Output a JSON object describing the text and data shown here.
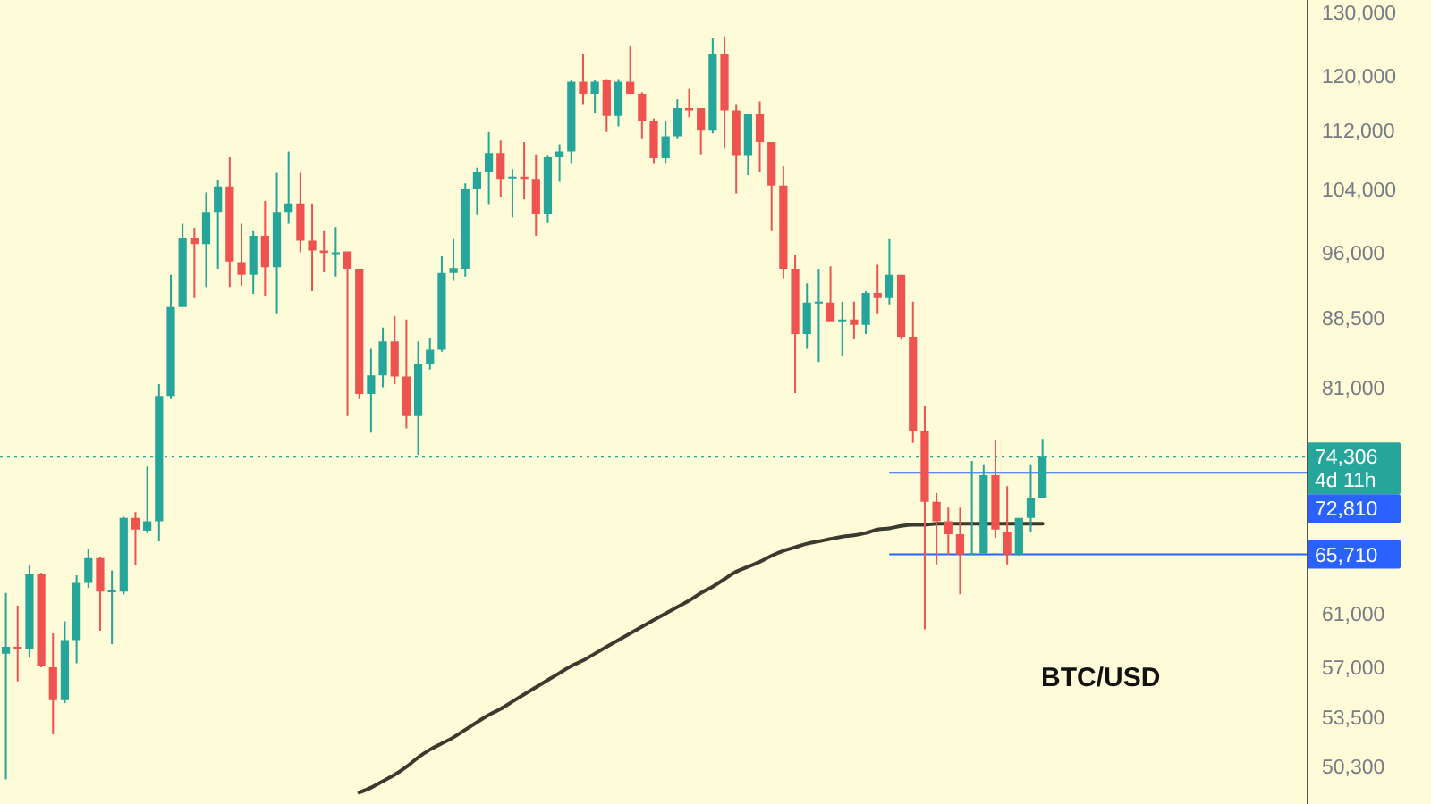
{
  "chart_data": {
    "type": "candlestick",
    "title": "BTC/USD",
    "categories": [
      null,
      null,
      null,
      null,
      null,
      null,
      null,
      null,
      null,
      null,
      null,
      null,
      null,
      null,
      null,
      null,
      null,
      null,
      null,
      null,
      null,
      null,
      null,
      null,
      null,
      null,
      null,
      null,
      null,
      null,
      null,
      null,
      null,
      null,
      null,
      null,
      null,
      null,
      null,
      null,
      null,
      null,
      null,
      null,
      null,
      null,
      null,
      null,
      null,
      null,
      null,
      null,
      null,
      null,
      null,
      null,
      null,
      null,
      null,
      null,
      null,
      null,
      null,
      null,
      null,
      null,
      null,
      null,
      null,
      null,
      null,
      null,
      null,
      null,
      null,
      null,
      null,
      null,
      null,
      null,
      null,
      null,
      null,
      null,
      null,
      null,
      null,
      null,
      null,
      null,
      null,
      null,
      null,
      null,
      null,
      null,
      null,
      null,
      null,
      null,
      null,
      null,
      null,
      null,
      null,
      null,
      null,
      null,
      null,
      null,
      null
    ],
    "ohlc": [
      [
        58000,
        62600,
        49500,
        58500
      ],
      [
        58500,
        61600,
        56000,
        58300
      ],
      [
        58300,
        64800,
        57700,
        64100
      ],
      [
        64100,
        64200,
        57000,
        57100
      ],
      [
        57000,
        59500,
        52400,
        54700
      ],
      [
        54700,
        60400,
        54500,
        59000
      ],
      [
        59000,
        64000,
        57300,
        63400
      ],
      [
        63400,
        66200,
        63000,
        65400
      ],
      [
        65400,
        65500,
        59700,
        62700
      ],
      [
        62700,
        64400,
        58700,
        62800
      ],
      [
        62700,
        68900,
        62500,
        68800
      ],
      [
        68800,
        69300,
        64800,
        67800
      ],
      [
        67700,
        73400,
        67500,
        68500
      ],
      [
        68500,
        81400,
        66800,
        80200
      ],
      [
        80200,
        93400,
        79900,
        89700
      ],
      [
        89700,
        99600,
        89700,
        97900
      ],
      [
        97900,
        99100,
        90700,
        97100
      ],
      [
        97100,
        103600,
        92000,
        101100
      ],
      [
        101100,
        105300,
        94100,
        104400
      ],
      [
        104400,
        108300,
        92000,
        95000
      ],
      [
        94900,
        99600,
        92100,
        93400
      ],
      [
        93400,
        98700,
        91200,
        98100
      ],
      [
        98100,
        102500,
        91000,
        94300
      ],
      [
        94300,
        106200,
        89000,
        101100
      ],
      [
        101100,
        109100,
        99600,
        102200
      ],
      [
        102200,
        106200,
        96100,
        97500
      ],
      [
        97500,
        102200,
        91500,
        96300
      ],
      [
        96300,
        98700,
        93700,
        96000
      ],
      [
        95900,
        99200,
        93200,
        96100
      ],
      [
        96200,
        96200,
        78200,
        94100
      ],
      [
        94100,
        94100,
        79900,
        80400
      ],
      [
        80400,
        85100,
        76600,
        82300
      ],
      [
        82300,
        87400,
        81100,
        85900
      ],
      [
        85900,
        88700,
        81400,
        82200
      ],
      [
        82200,
        88300,
        77000,
        78200
      ],
      [
        78200,
        85900,
        74500,
        83500
      ],
      [
        83500,
        86300,
        82900,
        85000
      ],
      [
        85000,
        95600,
        84800,
        93600
      ],
      [
        93600,
        97800,
        92800,
        94200
      ],
      [
        94100,
        104800,
        93200,
        104000
      ],
      [
        104000,
        106900,
        100700,
        106300
      ],
      [
        106300,
        111800,
        102100,
        108900
      ],
      [
        108900,
        110600,
        103000,
        105400
      ],
      [
        105500,
        106700,
        100400,
        105700
      ],
      [
        105700,
        110400,
        102700,
        105400
      ],
      [
        105400,
        108700,
        98100,
        100800
      ],
      [
        100800,
        108500,
        99700,
        108300
      ],
      [
        108300,
        110100,
        105000,
        109100
      ],
      [
        109100,
        119300,
        107400,
        119100
      ],
      [
        119100,
        123300,
        115800,
        117300
      ],
      [
        117300,
        119300,
        114500,
        119100
      ],
      [
        119300,
        119500,
        111800,
        114100
      ],
      [
        114100,
        119500,
        112600,
        119100
      ],
      [
        119100,
        124500,
        117300,
        117300
      ],
      [
        117300,
        117500,
        110800,
        113400
      ],
      [
        113400,
        113700,
        107400,
        108200
      ],
      [
        108200,
        113300,
        107400,
        111200
      ],
      [
        111200,
        116500,
        110800,
        115200
      ],
      [
        115200,
        118000,
        113900,
        114900
      ],
      [
        115200,
        115200,
        108700,
        112000
      ],
      [
        112000,
        125800,
        111600,
        123300
      ],
      [
        123300,
        126100,
        109500,
        114900
      ],
      [
        114900,
        115800,
        103500,
        108500
      ],
      [
        108500,
        114300,
        105900,
        114300
      ],
      [
        114300,
        116200,
        106300,
        110400
      ],
      [
        110400,
        110400,
        98700,
        104500
      ],
      [
        104500,
        107100,
        93000,
        94100
      ],
      [
        94100,
        95800,
        80500,
        86700
      ],
      [
        86700,
        92400,
        85100,
        90200
      ],
      [
        90100,
        94100,
        83700,
        90300
      ],
      [
        90200,
        94400,
        88100,
        88100
      ],
      [
        88100,
        90300,
        84300,
        88300
      ],
      [
        88300,
        90300,
        86200,
        87700
      ],
      [
        87700,
        91500,
        86700,
        91300
      ],
      [
        91300,
        94600,
        89000,
        90700
      ],
      [
        90700,
        97800,
        90000,
        93400
      ],
      [
        93400,
        93400,
        86100,
        86400
      ],
      [
        86400,
        90300,
        75600,
        76700
      ],
      [
        76700,
        79200,
        59800,
        70200
      ],
      [
        70200,
        71000,
        64900,
        68500
      ],
      [
        68500,
        69700,
        65700,
        67400
      ],
      [
        67400,
        69700,
        62500,
        65700
      ],
      [
        65700,
        73900,
        65700,
        65800
      ],
      [
        65800,
        73600,
        65700,
        72600
      ],
      [
        72600,
        75900,
        67100,
        67800
      ],
      [
        67600,
        71600,
        64900,
        65700
      ],
      [
        65700,
        68800,
        65600,
        68800
      ],
      [
        68800,
        73600,
        67600,
        70500
      ],
      [
        70500,
        76000,
        70500,
        74306
      ],
      null,
      null,
      null,
      null,
      null,
      null,
      null,
      null,
      null,
      null,
      null,
      null,
      null,
      null,
      null,
      null,
      null,
      null,
      null,
      null,
      null,
      null
    ],
    "colors": [
      "#26a69a",
      "#ef5350",
      "#26a69a",
      "#ef5350",
      "#ef5350",
      "#26a69a",
      "#26a69a",
      "#26a69a",
      "#ef5350",
      "#26a69a",
      "#26a69a",
      "#ef5350",
      "#26a69a",
      "#26a69a",
      "#26a69a",
      "#26a69a",
      "#ef5350",
      "#26a69a",
      "#26a69a",
      "#ef5350",
      "#ef5350",
      "#26a69a",
      "#ef5350",
      "#26a69a",
      "#26a69a",
      "#ef5350",
      "#ef5350",
      "#ef5350",
      "#26a69a",
      "#ef5350",
      "#ef5350",
      "#26a69a",
      "#26a69a",
      "#ef5350",
      "#ef5350",
      "#26a69a",
      "#26a69a",
      "#26a69a",
      "#26a69a",
      "#26a69a",
      "#26a69a",
      "#26a69a",
      "#ef5350",
      "#26a69a",
      "#ef5350",
      "#ef5350",
      "#26a69a",
      "#26a69a",
      "#26a69a",
      "#ef5350",
      "#26a69a",
      "#ef5350",
      "#26a69a",
      "#ef5350",
      "#ef5350",
      "#ef5350",
      "#26a69a",
      "#26a69a",
      "#ef5350",
      "#ef5350",
      "#26a69a",
      "#ef5350",
      "#ef5350",
      "#26a69a",
      "#ef5350",
      "#ef5350",
      "#ef5350",
      "#ef5350",
      "#26a69a",
      "#26a69a",
      "#ef5350",
      "#26a69a",
      "#ef5350",
      "#26a69a",
      "#ef5350",
      "#26a69a",
      "#ef5350",
      "#ef5350",
      "#ef5350",
      "#ef5350",
      "#ef5350",
      "#ef5350",
      "#26a69a",
      "#26a69a",
      "#ef5350",
      "#ef5350",
      "#26a69a",
      "#26a69a",
      "#26a69a",
      null,
      null,
      null,
      null,
      null,
      null,
      null,
      null,
      null,
      null,
      null,
      null,
      null,
      null,
      null,
      null,
      null,
      null,
      null,
      null,
      null,
      null
    ],
    "series": [
      {
        "type": "line",
        "color": "#3b3a2f",
        "values": [
          null,
          null,
          null,
          null,
          null,
          null,
          null,
          null,
          null,
          null,
          null,
          null,
          null,
          null,
          null,
          null,
          null,
          null,
          null,
          null,
          null,
          null,
          null,
          null,
          null,
          null,
          null,
          null,
          null,
          null,
          48700,
          49000,
          49400,
          49800,
          50300,
          50900,
          51400,
          51800,
          52200,
          52700,
          53200,
          53700,
          54100,
          54600,
          55100,
          55600,
          56100,
          56600,
          57100,
          57500,
          58000,
          58500,
          59000,
          59500,
          60000,
          60500,
          61000,
          61500,
          62000,
          62600,
          63100,
          63700,
          64300,
          64700,
          65100,
          65600,
          66000,
          66300,
          66600,
          66800,
          67000,
          67200,
          67300,
          67500,
          67800,
          67900,
          68100,
          68200,
          68200,
          68300,
          68300,
          68300,
          68300,
          68300,
          68300,
          68300,
          68300,
          68300,
          68300,
          null,
          null,
          null,
          null,
          null,
          null,
          null,
          null,
          null,
          null,
          null,
          null,
          null,
          null,
          null,
          null,
          null,
          null,
          null,
          null,
          null,
          null
        ]
      }
    ],
    "ylim": [
      48000,
      132000
    ],
    "yticks": [
      {
        "value": 50300,
        "label": "50,300"
      },
      {
        "value": 53500,
        "label": "53,500"
      },
      {
        "value": 57000,
        "label": "57,000"
      },
      {
        "value": 61000,
        "label": "61,000"
      },
      {
        "value": 81000,
        "label": "81,000"
      },
      {
        "value": 88500,
        "label": "88,500"
      },
      {
        "value": 96000,
        "label": "96,000"
      },
      {
        "value": 104000,
        "label": "104,000"
      },
      {
        "value": 112000,
        "label": "112,000"
      },
      {
        "value": 120000,
        "label": "120,000"
      },
      {
        "value": 130000,
        "label": "130,000"
      }
    ],
    "log": true,
    "tick_labels": "y",
    "ref_lines": [
      {
        "axis": "y",
        "value": 74306,
        "label": "74,306",
        "color": "#26a69a",
        "line_style": "dotted"
      },
      {
        "axis": "y",
        "value": 72810,
        "label": "72,810",
        "color": "#2962ff",
        "line_style": "solid"
      },
      {
        "axis": "y",
        "value": 65710,
        "label": "65,710",
        "color": "#2962ff",
        "line_style": "solid"
      }
    ],
    "annotations": [
      "4d 11h"
    ]
  }
}
